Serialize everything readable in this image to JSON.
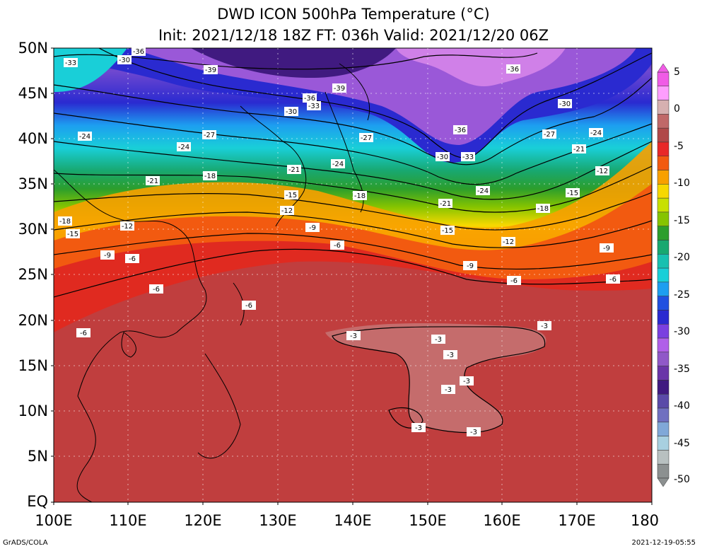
{
  "title": {
    "line1": "DWD ICON 500hPa Temperature (°C)",
    "line2": "Init: 2021/12/18 18Z  FT: 036h  Valid: 2021/12/20 06Z"
  },
  "axes": {
    "lat_labels": [
      "50N",
      "45N",
      "40N",
      "35N",
      "30N",
      "25N",
      "20N",
      "15N",
      "10N",
      "5N",
      "EQ"
    ],
    "lon_labels": [
      "100E",
      "110E",
      "120E",
      "130E",
      "140E",
      "150E",
      "160E",
      "170E",
      "180"
    ]
  },
  "colorbar": {
    "labels": [
      "5",
      "0",
      "-5",
      "-10",
      "-15",
      "-20",
      "-25",
      "-30",
      "-35",
      "-40",
      "-45",
      "-50"
    ],
    "colors": [
      "#f05ce6",
      "#fe9efe",
      "#d6b0b0",
      "#c06868",
      "#b04848",
      "#e82828",
      "#f25a10",
      "#f8a000",
      "#f7d800",
      "#c8e000",
      "#86c400",
      "#2c9e2c",
      "#18a870",
      "#18c0b0",
      "#19cfd8",
      "#1d9ef0",
      "#2050e0",
      "#2a2ad0",
      "#7a40e0",
      "#b060e8",
      "#9058c8",
      "#6a34a8",
      "#401a80",
      "#5a4aa8",
      "#7070c0",
      "#80a8d8",
      "#a8d0e0",
      "#b8c0c0",
      "#8c9090"
    ]
  },
  "contour_labels": [
    "-36",
    "-39",
    "-30",
    "-27",
    "-33",
    "-24",
    "-21",
    "-18",
    "-15",
    "-12",
    "-9",
    "-6",
    "-3"
  ],
  "footer": {
    "left": "GrADS/COLA",
    "right": "2021-12-19-05:55"
  }
}
